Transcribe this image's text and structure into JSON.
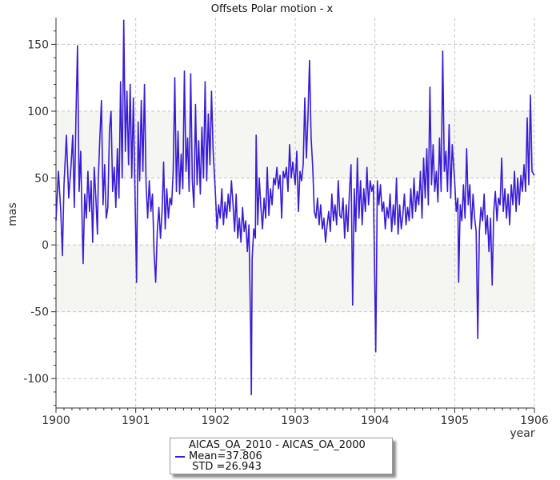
{
  "chart_data": {
    "type": "line",
    "title": "Offsets Polar motion - x",
    "xlabel": "year",
    "ylabel": "mas",
    "xlim": [
      1900,
      1906
    ],
    "ylim": [
      -122,
      170
    ],
    "x_ticks": [
      1900,
      1901,
      1902,
      1903,
      1904,
      1905,
      1906
    ],
    "y_ticks": [
      -100,
      -50,
      0,
      50,
      100,
      150
    ],
    "bands": [
      [
        -50,
        0
      ],
      [
        50,
        100
      ]
    ],
    "grid": true,
    "legend_position": "bottom",
    "line_color": "#3a1bd6",
    "band_color": "#f5f5f1",
    "series": [
      {
        "name": "AICAS_OA_2010 - AICAS_OA_2000",
        "stats": {
          "mean": "Mean=37.806",
          "std": " STD =26.943"
        },
        "points": [
          [
            1900.0,
            18
          ],
          [
            1900.03,
            55
          ],
          [
            1900.06,
            25
          ],
          [
            1900.08,
            -8
          ],
          [
            1900.1,
            45
          ],
          [
            1900.13,
            82
          ],
          [
            1900.16,
            35
          ],
          [
            1900.19,
            60
          ],
          [
            1900.21,
            82
          ],
          [
            1900.23,
            28
          ],
          [
            1900.25,
            95
          ],
          [
            1900.27,
            149
          ],
          [
            1900.29,
            40
          ],
          [
            1900.31,
            70
          ],
          [
            1900.33,
            10
          ],
          [
            1900.34,
            -14
          ],
          [
            1900.36,
            38
          ],
          [
            1900.38,
            20
          ],
          [
            1900.4,
            55
          ],
          [
            1900.42,
            25
          ],
          [
            1900.44,
            48
          ],
          [
            1900.46,
            2
          ],
          [
            1900.48,
            58
          ],
          [
            1900.5,
            35
          ],
          [
            1900.52,
            8
          ],
          [
            1900.53,
            48
          ],
          [
            1900.55,
            80
          ],
          [
            1900.57,
            108
          ],
          [
            1900.59,
            30
          ],
          [
            1900.61,
            60
          ],
          [
            1900.63,
            20
          ],
          [
            1900.65,
            28
          ],
          [
            1900.67,
            85
          ],
          [
            1900.69,
            100
          ],
          [
            1900.71,
            40
          ],
          [
            1900.73,
            58
          ],
          [
            1900.75,
            28
          ],
          [
            1900.77,
            72
          ],
          [
            1900.79,
            35
          ],
          [
            1900.81,
            122
          ],
          [
            1900.83,
            50
          ],
          [
            1900.85,
            168
          ],
          [
            1900.87,
            70
          ],
          [
            1900.89,
            115
          ],
          [
            1900.91,
            60
          ],
          [
            1900.93,
            120
          ],
          [
            1900.95,
            50
          ],
          [
            1900.97,
            110
          ],
          [
            1900.99,
            40
          ],
          [
            1901.01,
            -28
          ],
          [
            1901.03,
            92
          ],
          [
            1901.05,
            48
          ],
          [
            1901.07,
            108
          ],
          [
            1901.09,
            55
          ],
          [
            1901.11,
            120
          ],
          [
            1901.13,
            45
          ],
          [
            1901.15,
            20
          ],
          [
            1901.17,
            48
          ],
          [
            1901.19,
            25
          ],
          [
            1901.21,
            38
          ],
          [
            1901.23,
            -6
          ],
          [
            1901.25,
            -28
          ],
          [
            1901.27,
            10
          ],
          [
            1901.29,
            28
          ],
          [
            1901.31,
            5
          ],
          [
            1901.33,
            25
          ],
          [
            1901.35,
            62
          ],
          [
            1901.37,
            12
          ],
          [
            1901.39,
            42
          ],
          [
            1901.41,
            20
          ],
          [
            1901.43,
            35
          ],
          [
            1901.45,
            30
          ],
          [
            1901.47,
            55
          ],
          [
            1901.49,
            125
          ],
          [
            1901.51,
            40
          ],
          [
            1901.53,
            85
          ],
          [
            1901.55,
            38
          ],
          [
            1901.57,
            68
          ],
          [
            1901.59,
            42
          ],
          [
            1901.61,
            130
          ],
          [
            1901.63,
            55
          ],
          [
            1901.65,
            80
          ],
          [
            1901.67,
            40
          ],
          [
            1901.69,
            128
          ],
          [
            1901.71,
            48
          ],
          [
            1901.73,
            28
          ],
          [
            1901.75,
            105
          ],
          [
            1901.77,
            45
          ],
          [
            1901.79,
            78
          ],
          [
            1901.81,
            38
          ],
          [
            1901.83,
            88
          ],
          [
            1901.85,
            50
          ],
          [
            1901.87,
            122
          ],
          [
            1901.89,
            48
          ],
          [
            1901.91,
            98
          ],
          [
            1901.93,
            60
          ],
          [
            1901.95,
            115
          ],
          [
            1901.97,
            72
          ],
          [
            1902.0,
            38
          ],
          [
            1902.02,
            12
          ],
          [
            1902.04,
            30
          ],
          [
            1902.06,
            20
          ],
          [
            1902.08,
            42
          ],
          [
            1902.1,
            15
          ],
          [
            1902.12,
            32
          ],
          [
            1902.14,
            20
          ],
          [
            1902.16,
            38
          ],
          [
            1902.18,
            25
          ],
          [
            1902.2,
            48
          ],
          [
            1902.22,
            30
          ],
          [
            1902.24,
            10
          ],
          [
            1902.26,
            38
          ],
          [
            1902.28,
            5
          ],
          [
            1902.3,
            20
          ],
          [
            1902.32,
            2
          ],
          [
            1902.34,
            28
          ],
          [
            1902.36,
            10
          ],
          [
            1902.38,
            18
          ],
          [
            1902.4,
            -5
          ],
          [
            1902.42,
            15
          ],
          [
            1902.44,
            -60
          ],
          [
            1902.45,
            -112
          ],
          [
            1902.46,
            -10
          ],
          [
            1902.48,
            12
          ],
          [
            1902.5,
            5
          ],
          [
            1902.51,
            82
          ],
          [
            1902.53,
            15
          ],
          [
            1902.55,
            50
          ],
          [
            1902.57,
            28
          ],
          [
            1902.59,
            12
          ],
          [
            1902.61,
            35
          ],
          [
            1902.63,
            20
          ],
          [
            1902.65,
            58
          ],
          [
            1902.67,
            22
          ],
          [
            1902.69,
            42
          ],
          [
            1902.71,
            30
          ],
          [
            1902.73,
            50
          ],
          [
            1902.75,
            45
          ],
          [
            1902.77,
            58
          ],
          [
            1902.79,
            42
          ],
          [
            1902.81,
            52
          ],
          [
            1902.83,
            20
          ],
          [
            1902.85,
            55
          ],
          [
            1902.87,
            50
          ],
          [
            1902.89,
            58
          ],
          [
            1902.91,
            40
          ],
          [
            1902.93,
            75
          ],
          [
            1902.95,
            50
          ],
          [
            1902.97,
            62
          ],
          [
            1903.0,
            45
          ],
          [
            1903.02,
            70
          ],
          [
            1903.04,
            25
          ],
          [
            1903.06,
            55
          ],
          [
            1903.08,
            48
          ],
          [
            1903.1,
            60
          ],
          [
            1903.12,
            110
          ],
          [
            1903.14,
            65
          ],
          [
            1903.16,
            95
          ],
          [
            1903.18,
            138
          ],
          [
            1903.2,
            80
          ],
          [
            1903.22,
            58
          ],
          [
            1903.24,
            25
          ],
          [
            1903.26,
            20
          ],
          [
            1903.28,
            35
          ],
          [
            1903.3,
            15
          ],
          [
            1903.32,
            30
          ],
          [
            1903.34,
            12
          ],
          [
            1903.36,
            20
          ],
          [
            1903.38,
            2
          ],
          [
            1903.4,
            15
          ],
          [
            1903.42,
            25
          ],
          [
            1903.44,
            10
          ],
          [
            1903.46,
            38
          ],
          [
            1903.48,
            18
          ],
          [
            1903.5,
            30
          ],
          [
            1903.52,
            15
          ],
          [
            1903.54,
            48
          ],
          [
            1903.56,
            22
          ],
          [
            1903.58,
            20
          ],
          [
            1903.6,
            35
          ],
          [
            1903.62,
            5
          ],
          [
            1903.64,
            30
          ],
          [
            1903.66,
            10
          ],
          [
            1903.68,
            40
          ],
          [
            1903.7,
            60
          ],
          [
            1903.72,
            -45
          ],
          [
            1903.74,
            42
          ],
          [
            1903.76,
            10
          ],
          [
            1903.78,
            65
          ],
          [
            1903.8,
            20
          ],
          [
            1903.82,
            48
          ],
          [
            1903.84,
            15
          ],
          [
            1903.86,
            42
          ],
          [
            1903.88,
            25
          ],
          [
            1903.9,
            58
          ],
          [
            1903.92,
            30
          ],
          [
            1903.94,
            48
          ],
          [
            1903.96,
            40
          ],
          [
            1903.98,
            45
          ],
          [
            1904.01,
            -80
          ],
          [
            1904.03,
            48
          ],
          [
            1904.05,
            30
          ],
          [
            1904.07,
            45
          ],
          [
            1904.09,
            25
          ],
          [
            1904.11,
            32
          ],
          [
            1904.13,
            12
          ],
          [
            1904.15,
            28
          ],
          [
            1904.17,
            20
          ],
          [
            1904.19,
            38
          ],
          [
            1904.21,
            10
          ],
          [
            1904.23,
            30
          ],
          [
            1904.25,
            15
          ],
          [
            1904.27,
            50
          ],
          [
            1904.29,
            8
          ],
          [
            1904.31,
            30
          ],
          [
            1904.33,
            12
          ],
          [
            1904.35,
            22
          ],
          [
            1904.37,
            38
          ],
          [
            1904.39,
            15
          ],
          [
            1904.41,
            28
          ],
          [
            1904.43,
            18
          ],
          [
            1904.45,
            42
          ],
          [
            1904.47,
            20
          ],
          [
            1904.49,
            50
          ],
          [
            1904.51,
            25
          ],
          [
            1904.53,
            40
          ],
          [
            1904.55,
            30
          ],
          [
            1904.57,
            55
          ],
          [
            1904.59,
            20
          ],
          [
            1904.61,
            65
          ],
          [
            1904.63,
            35
          ],
          [
            1904.65,
            72
          ],
          [
            1904.67,
            30
          ],
          [
            1904.69,
            118
          ],
          [
            1904.71,
            45
          ],
          [
            1904.73,
            75
          ],
          [
            1904.75,
            40
          ],
          [
            1904.77,
            55
          ],
          [
            1904.79,
            32
          ],
          [
            1904.81,
            80
          ],
          [
            1904.83,
            40
          ],
          [
            1904.85,
            145
          ],
          [
            1904.87,
            55
          ],
          [
            1904.89,
            70
          ],
          [
            1904.91,
            40
          ],
          [
            1904.93,
            90
          ],
          [
            1904.95,
            35
          ],
          [
            1904.97,
            75
          ],
          [
            1905.0,
            48
          ],
          [
            1905.02,
            25
          ],
          [
            1905.04,
            35
          ],
          [
            1905.05,
            -28
          ],
          [
            1905.07,
            30
          ],
          [
            1905.09,
            18
          ],
          [
            1905.11,
            45
          ],
          [
            1905.13,
            20
          ],
          [
            1905.15,
            72
          ],
          [
            1905.17,
            30
          ],
          [
            1905.19,
            45
          ],
          [
            1905.21,
            12
          ],
          [
            1905.23,
            38
          ],
          [
            1905.25,
            20
          ],
          [
            1905.27,
            10
          ],
          [
            1905.29,
            -70
          ],
          [
            1905.31,
            10
          ],
          [
            1905.33,
            28
          ],
          [
            1905.35,
            18
          ],
          [
            1905.37,
            38
          ],
          [
            1905.39,
            8
          ],
          [
            1905.41,
            22
          ],
          [
            1905.43,
            -5
          ],
          [
            1905.45,
            20
          ],
          [
            1905.47,
            -30
          ],
          [
            1905.49,
            25
          ],
          [
            1905.51,
            40
          ],
          [
            1905.53,
            18
          ],
          [
            1905.55,
            35
          ],
          [
            1905.57,
            30
          ],
          [
            1905.59,
            65
          ],
          [
            1905.61,
            25
          ],
          [
            1905.63,
            42
          ],
          [
            1905.65,
            20
          ],
          [
            1905.67,
            38
          ],
          [
            1905.69,
            15
          ],
          [
            1905.71,
            45
          ],
          [
            1905.73,
            30
          ],
          [
            1905.75,
            55
          ],
          [
            1905.77,
            25
          ],
          [
            1905.79,
            50
          ],
          [
            1905.81,
            30
          ],
          [
            1905.83,
            52
          ],
          [
            1905.85,
            40
          ],
          [
            1905.87,
            60
          ],
          [
            1905.89,
            40
          ],
          [
            1905.91,
            95
          ],
          [
            1905.93,
            45
          ],
          [
            1905.95,
            112
          ],
          [
            1905.97,
            55
          ],
          [
            1906.0,
            52
          ]
        ]
      }
    ]
  }
}
